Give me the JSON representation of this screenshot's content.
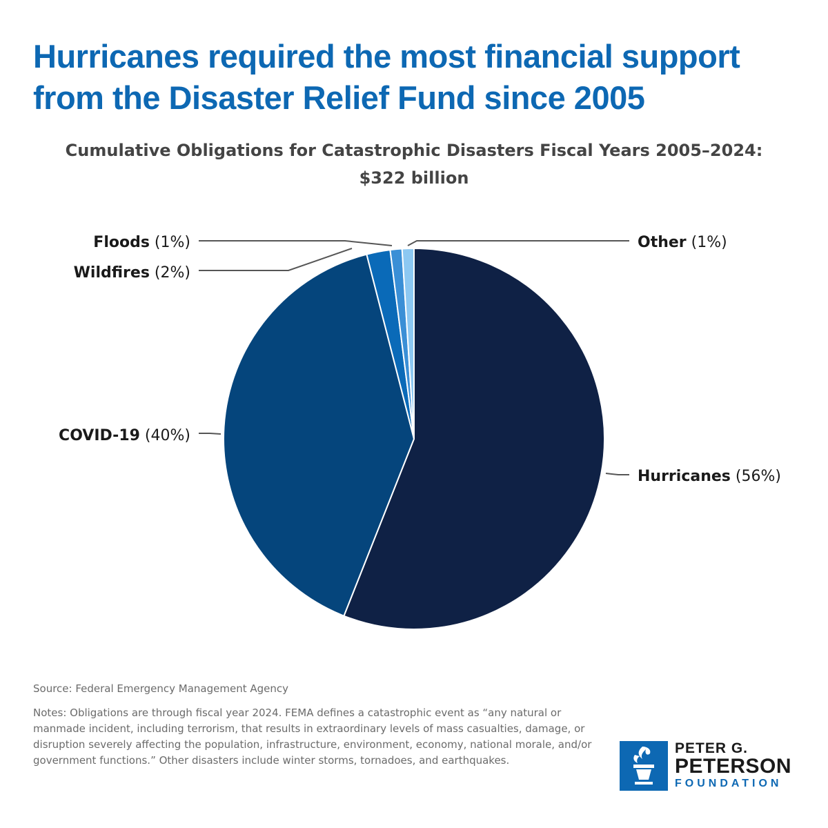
{
  "title": "Hurricanes required the most financial support from the Disaster Relief Fund since 2005",
  "subtitle_line1": "Cumulative Obligations for Catastrophic Disasters Fiscal Years 2005–2024:",
  "subtitle_line2": "$322 billion",
  "chart_data": {
    "type": "pie",
    "start": "12 o'clock, clockwise",
    "slices": [
      {
        "name": "Hurricanes",
        "pct_label": "(56%)",
        "value": 56,
        "color": "#0f2145"
      },
      {
        "name": "COVID-19",
        "pct_label": "(40%)",
        "value": 40,
        "color": "#05457c"
      },
      {
        "name": "Wildfires",
        "pct_label": "(2%)",
        "value": 2,
        "color": "#0a6ab8"
      },
      {
        "name": "Floods",
        "pct_label": "(1%)",
        "value": 1,
        "color": "#3a8fd6"
      },
      {
        "name": "Other",
        "pct_label": "(1%)",
        "value": 1,
        "color": "#8cc8f2"
      }
    ]
  },
  "source": "Source: Federal Emergency Management Agency",
  "notes": "Notes: Obligations are through fiscal year 2024. FEMA defines a catastrophic event as “any natural or manmade incident, including terrorism, that results in extraordinary levels of mass casualties, damage, or disruption severely affecting the population, infrastructure, environment, economy, national morale, and/or government functions.” Other disasters include winter storms, tornadoes, and earthquakes.",
  "logo": {
    "line1": "PETER G.",
    "line2": "PETERSON",
    "line3": "FOUNDATION",
    "icon": "torch-icon"
  }
}
